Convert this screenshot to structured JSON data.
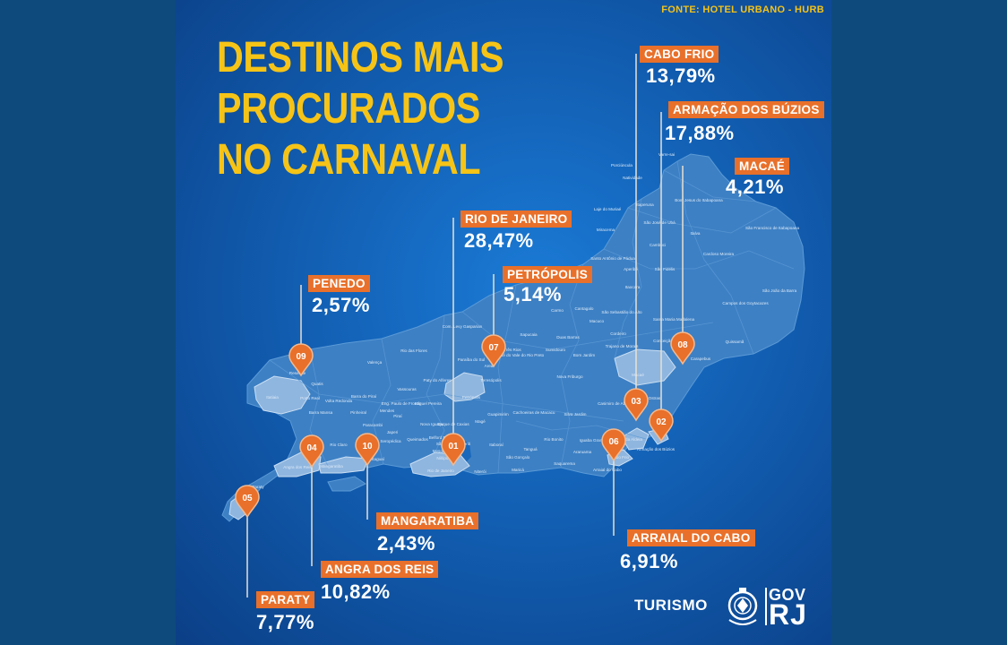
{
  "source": "FONTE: HOTEL URBANO - HURB",
  "title_lines": [
    "DESTINOS MAIS",
    "PROCURADOS",
    "NO CARNAVAL"
  ],
  "colors": {
    "accent_orange": "#e8702a",
    "title_yellow": "#f6c417",
    "background_blue": "#125fb3",
    "land": "#3f82c6"
  },
  "destinations": [
    {
      "rank": "01",
      "name": "RIO DE JANEIRO",
      "percent": "28,47%"
    },
    {
      "rank": "02",
      "name": "ARMAÇÃO DOS BÚZIOS",
      "percent": "17,88%"
    },
    {
      "rank": "03",
      "name": "CABO FRIO",
      "percent": "13,79%"
    },
    {
      "rank": "04",
      "name": "ANGRA DOS REIS",
      "percent": "10,82%"
    },
    {
      "rank": "05",
      "name": "PARATY",
      "percent": "7,77%"
    },
    {
      "rank": "06",
      "name": "ARRAIAL DO CABO",
      "percent": "6,91%"
    },
    {
      "rank": "07",
      "name": "PETRÓPOLIS",
      "percent": "5,14%"
    },
    {
      "rank": "08",
      "name": "MACAÉ",
      "percent": "4,21%"
    },
    {
      "rank": "09",
      "name": "PENEDO",
      "percent": "2,57%"
    },
    {
      "rank": "10",
      "name": "MANGARATIBA",
      "percent": "2,43%"
    }
  ],
  "map_labels": [
    "Porciúncula",
    "Natividade",
    "Varre-sai",
    "Bom Jesus do Itabapoana",
    "Itaperuna",
    "Laje do Muriaé",
    "São José de Ubá",
    "Miracema",
    "Italva",
    "Cambuci",
    "São Francisco de Itabapoana",
    "Santo Antônio de Pádua",
    "Cardoso Moreira",
    "Aperibé",
    "São Fidélis",
    "Itaocara",
    "São João da Barra",
    "Campos dos Goytacazes",
    "Cantagalo",
    "São Sebastião do Alto",
    "Carmo",
    "Santa Maria Madalena",
    "Macuco",
    "Cordeiro",
    "Quissamã",
    "Duas Barras",
    "Sumidouro",
    "Trajano de Morais",
    "Conceição de Macabu",
    "Carapebus",
    "Bom Jardim",
    "Sapucaia",
    "Com. Levy Gasparian",
    "Três Rios",
    "Areal",
    "São José do Vale do Rio Preto",
    "Teresópolis",
    "Nova Friburgo",
    "Paraíba do Sul",
    "Rio das Flores",
    "Valença",
    "Paty do Alferes",
    "Vassouras",
    "Petrópolis",
    "Resende",
    "Quatis",
    "Itatiaia",
    "Porto Real",
    "Volta Redonda",
    "Barra do Piraí",
    "Barra Mansa",
    "Pinheiral",
    "Mendes",
    "Eng. Paulo de Frontin",
    "Miguel Pereira",
    "Piraí",
    "Paracambi",
    "Japeri",
    "Seropédica",
    "Queimados",
    "Nova Iguaçu",
    "Duque de Caxias",
    "Magé",
    "Guapimirim",
    "Cachoeiras de Macacu",
    "Silva Jardim",
    "Casimiro de Abreu",
    "Rio das Ostras",
    "Macaé",
    "Rio Claro",
    "Itaguaí",
    "Mangaratiba",
    "Angra dos Reis",
    "Paraty",
    "Rio de Janeiro",
    "Niterói",
    "São Gonçalo",
    "Itaboraí",
    "Tanguá",
    "Rio Bonito",
    "Maricá",
    "Saquarema",
    "Araruama",
    "Iguaba Grande",
    "São Pedro da Aldeia",
    "Cabo Frio",
    "Armação dos Búzios",
    "Arraial do Cabo",
    "Belford Roxo",
    "Mesquita",
    "Nilópolis",
    "São João de Meriti"
  ],
  "footer": {
    "turismo": "TURISMO",
    "gov": "GOV",
    "rj": "RJ"
  }
}
